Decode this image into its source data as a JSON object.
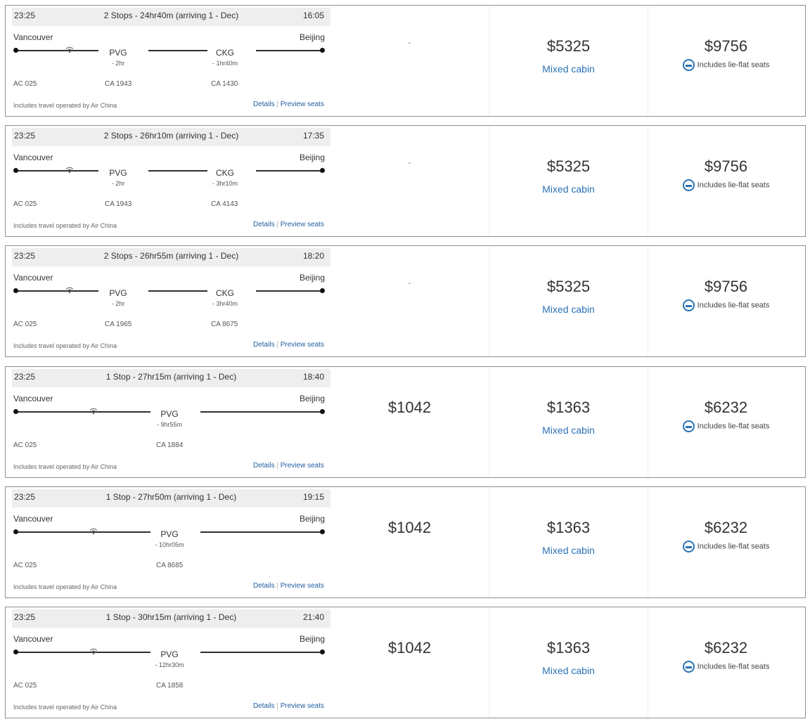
{
  "columns": {
    "c1": "",
    "c2": "",
    "c3": ""
  },
  "flights": [
    {
      "depart": "23:25",
      "summary": "2 Stops - 24hr40m (arriving 1 - Dec)",
      "arrive": "16:05",
      "origin": "Vancouver",
      "destination": "Beijing",
      "stops": [
        {
          "code": "PVG",
          "layover": "- 2hr"
        },
        {
          "code": "CKG",
          "layover": "- 1hr40m"
        }
      ],
      "flight_numbers": [
        "AC 025",
        "CA 1943",
        "CA 1430"
      ],
      "footnote": "Includes travel operated by Air China",
      "details": "Details",
      "separator": "|",
      "preview": "Preview seats",
      "fare1": "-",
      "fare2": "$5325",
      "fare2_note": "Mixed cabin",
      "fare3": "$9756",
      "fare3_note": "Includes lie-flat seats"
    },
    {
      "depart": "23:25",
      "summary": "2 Stops - 26hr10m (arriving 1 - Dec)",
      "arrive": "17:35",
      "origin": "Vancouver",
      "destination": "Beijing",
      "stops": [
        {
          "code": "PVG",
          "layover": "- 2hr"
        },
        {
          "code": "CKG",
          "layover": "- 3hr10m"
        }
      ],
      "flight_numbers": [
        "AC 025",
        "CA 1943",
        "CA 4143"
      ],
      "footnote": "Includes travel operated by Air China",
      "details": "Details",
      "separator": "|",
      "preview": "Preview seats",
      "fare1": "-",
      "fare2": "$5325",
      "fare2_note": "Mixed cabin",
      "fare3": "$9756",
      "fare3_note": "Includes lie-flat seats"
    },
    {
      "depart": "23:25",
      "summary": "2 Stops - 26hr55m (arriving 1 - Dec)",
      "arrive": "18:20",
      "origin": "Vancouver",
      "destination": "Beijing",
      "stops": [
        {
          "code": "PVG",
          "layover": "- 2hr"
        },
        {
          "code": "CKG",
          "layover": "- 3hr40m"
        }
      ],
      "flight_numbers": [
        "AC 025",
        "CA 1965",
        "CA 8675"
      ],
      "footnote": "Includes travel operated by Air China",
      "details": "Details",
      "separator": "|",
      "preview": "Preview seats",
      "fare1": "-",
      "fare2": "$5325",
      "fare2_note": "Mixed cabin",
      "fare3": "$9756",
      "fare3_note": "Includes lie-flat seats"
    },
    {
      "depart": "23:25",
      "summary": "1 Stop - 27hr15m (arriving 1 - Dec)",
      "arrive": "18:40",
      "origin": "Vancouver",
      "destination": "Beijing",
      "stops": [
        {
          "code": "PVG",
          "layover": "- 9hr55m"
        }
      ],
      "flight_numbers": [
        "AC 025",
        "CA 1884"
      ],
      "footnote": "Includes travel operated by Air China",
      "details": "Details",
      "separator": "|",
      "preview": "Preview seats",
      "fare1": "$1042",
      "fare2": "$1363",
      "fare2_note": "Mixed cabin",
      "fare3": "$6232",
      "fare3_note": "Includes lie-flat seats"
    },
    {
      "depart": "23:25",
      "summary": "1 Stop - 27hr50m (arriving 1 - Dec)",
      "arrive": "19:15",
      "origin": "Vancouver",
      "destination": "Beijing",
      "stops": [
        {
          "code": "PVG",
          "layover": "- 10hr05m"
        }
      ],
      "flight_numbers": [
        "AC 025",
        "CA 8685"
      ],
      "footnote": "Includes travel operated by Air China",
      "details": "Details",
      "separator": "|",
      "preview": "Preview seats",
      "fare1": "$1042",
      "fare2": "$1363",
      "fare2_note": "Mixed cabin",
      "fare3": "$6232",
      "fare3_note": "Includes lie-flat seats"
    },
    {
      "depart": "23:25",
      "summary": "1 Stop - 30hr15m (arriving 1 - Dec)",
      "arrive": "21:40",
      "origin": "Vancouver",
      "destination": "Beijing",
      "stops": [
        {
          "code": "PVG",
          "layover": "- 12hr30m"
        }
      ],
      "flight_numbers": [
        "AC 025",
        "CA 1858"
      ],
      "footnote": "Includes travel operated by Air China",
      "details": "Details",
      "separator": "|",
      "preview": "Preview seats",
      "fare1": "$1042",
      "fare2": "$1363",
      "fare2_note": "Mixed cabin",
      "fare3": "$6232",
      "fare3_note": "Includes lie-flat seats"
    }
  ],
  "colors": {
    "header_bg": "#eeeeee",
    "link": "#2060a0",
    "cabin_link": "#2a72b5",
    "card_border": "#8f8f8f"
  },
  "icons": {
    "wifi": "wifi-icon",
    "seat": "lie-flat-seat-icon"
  }
}
